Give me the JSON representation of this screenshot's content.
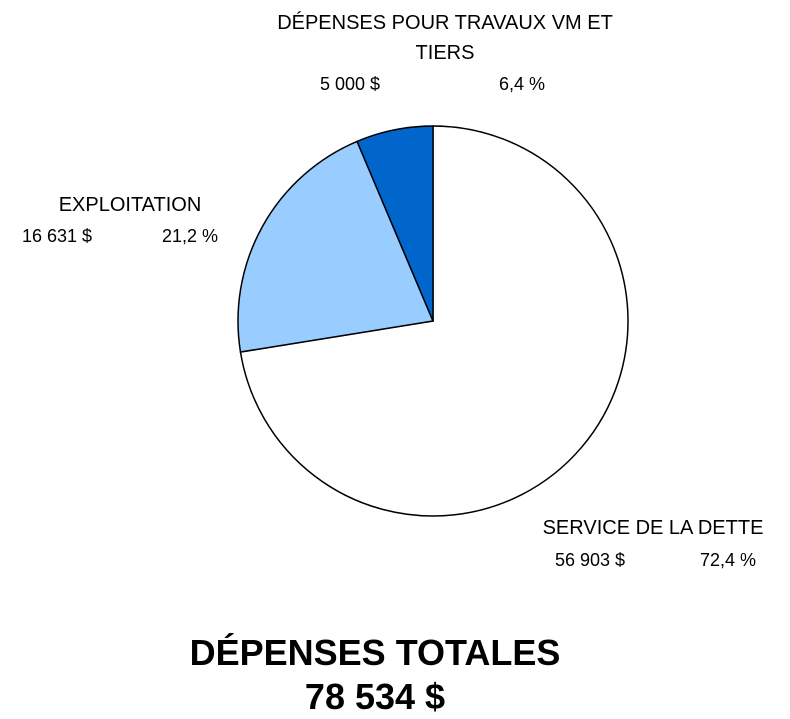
{
  "chart_data": {
    "type": "pie",
    "title": "DÉPENSES TOTALES",
    "subtitle": "78 534 $",
    "categories": [
      "SERVICE DE LA DETTE",
      "EXPLOITATION",
      "DÉPENSES POUR TRAVAUX VM ET TIERS"
    ],
    "values": [
      56903,
      16631,
      5000
    ],
    "value_labels": [
      "56 903 $",
      "16 631 $",
      "5 000 $"
    ],
    "percents": [
      72.4,
      21.2,
      6.4
    ],
    "percent_labels": [
      "72,4 %",
      "21,2 %",
      "6,4 %"
    ],
    "colors": [
      "#ffffff",
      "#99ccff",
      "#0066cc"
    ]
  }
}
